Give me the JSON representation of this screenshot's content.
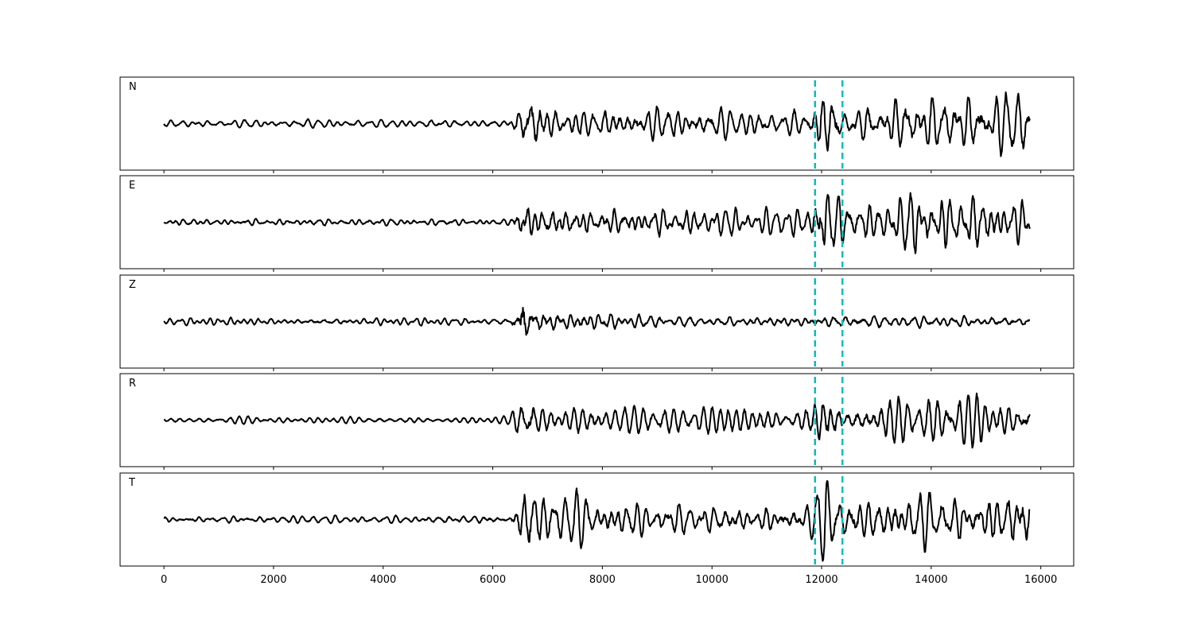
{
  "chart_data": {
    "type": "line",
    "x_range": [
      0,
      15800
    ],
    "xlim": [
      -800,
      16600
    ],
    "x_ticks": [
      0,
      2000,
      4000,
      6000,
      8000,
      10000,
      12000,
      14000,
      16000
    ],
    "x_tick_labels": [
      "0",
      "2000",
      "4000",
      "6000",
      "8000",
      "10000",
      "12000",
      "14000",
      "16000"
    ],
    "ylim": [
      -1.0,
      1.0
    ],
    "grid": false,
    "markers": [
      11880,
      12380
    ],
    "marker_color": "#00bfbf",
    "trace_color": "#000000",
    "channels": [
      {
        "name": "N",
        "envelope": [
          [
            0,
            0.07
          ],
          [
            6300,
            0.08
          ],
          [
            6400,
            0.22
          ],
          [
            6550,
            0.55
          ],
          [
            6700,
            0.85
          ],
          [
            6900,
            0.45
          ],
          [
            7300,
            0.38
          ],
          [
            9000,
            0.35
          ],
          [
            10500,
            0.3
          ],
          [
            11800,
            0.25
          ],
          [
            11950,
            0.7
          ],
          [
            12200,
            0.6
          ],
          [
            12400,
            0.3
          ],
          [
            13200,
            0.5
          ],
          [
            13500,
            0.6
          ],
          [
            14400,
            0.55
          ],
          [
            15800,
            0.6
          ]
        ],
        "seed": 11
      },
      {
        "name": "E",
        "envelope": [
          [
            0,
            0.07
          ],
          [
            6300,
            0.07
          ],
          [
            6480,
            0.35
          ],
          [
            6580,
            0.72
          ],
          [
            6800,
            0.3
          ],
          [
            9000,
            0.28
          ],
          [
            10500,
            0.28
          ],
          [
            11800,
            0.25
          ],
          [
            11950,
            0.75
          ],
          [
            12100,
            0.8
          ],
          [
            12400,
            0.3
          ],
          [
            13300,
            0.4
          ],
          [
            13550,
            0.6
          ],
          [
            14500,
            0.5
          ],
          [
            15800,
            0.5
          ]
        ],
        "seed": 23
      },
      {
        "name": "Z",
        "envelope": [
          [
            0,
            0.07
          ],
          [
            6300,
            0.08
          ],
          [
            6450,
            0.45
          ],
          [
            6550,
            0.92
          ],
          [
            6700,
            0.35
          ],
          [
            7400,
            0.2
          ],
          [
            9000,
            0.14
          ],
          [
            11800,
            0.12
          ],
          [
            12400,
            0.15
          ],
          [
            14000,
            0.14
          ],
          [
            15800,
            0.14
          ]
        ],
        "seed": 37
      },
      {
        "name": "R",
        "envelope": [
          [
            0,
            0.06
          ],
          [
            6300,
            0.07
          ],
          [
            6480,
            0.35
          ],
          [
            6620,
            0.7
          ],
          [
            6900,
            0.3
          ],
          [
            9000,
            0.3
          ],
          [
            11800,
            0.25
          ],
          [
            11990,
            0.8
          ],
          [
            12200,
            0.75
          ],
          [
            12400,
            0.3
          ],
          [
            13500,
            0.45
          ],
          [
            14200,
            0.45
          ],
          [
            15800,
            0.4
          ]
        ],
        "seed": 51
      },
      {
        "name": "T",
        "envelope": [
          [
            0,
            0.07
          ],
          [
            6300,
            0.08
          ],
          [
            6450,
            0.3
          ],
          [
            6600,
            0.65
          ],
          [
            6700,
            0.85
          ],
          [
            6950,
            0.5
          ],
          [
            8000,
            0.4
          ],
          [
            10000,
            0.3
          ],
          [
            11800,
            0.3
          ],
          [
            12050,
            0.7
          ],
          [
            12400,
            0.4
          ],
          [
            13500,
            0.55
          ],
          [
            15000,
            0.5
          ],
          [
            15400,
            0.65
          ],
          [
            15800,
            0.6
          ]
        ],
        "seed": 67
      }
    ]
  }
}
